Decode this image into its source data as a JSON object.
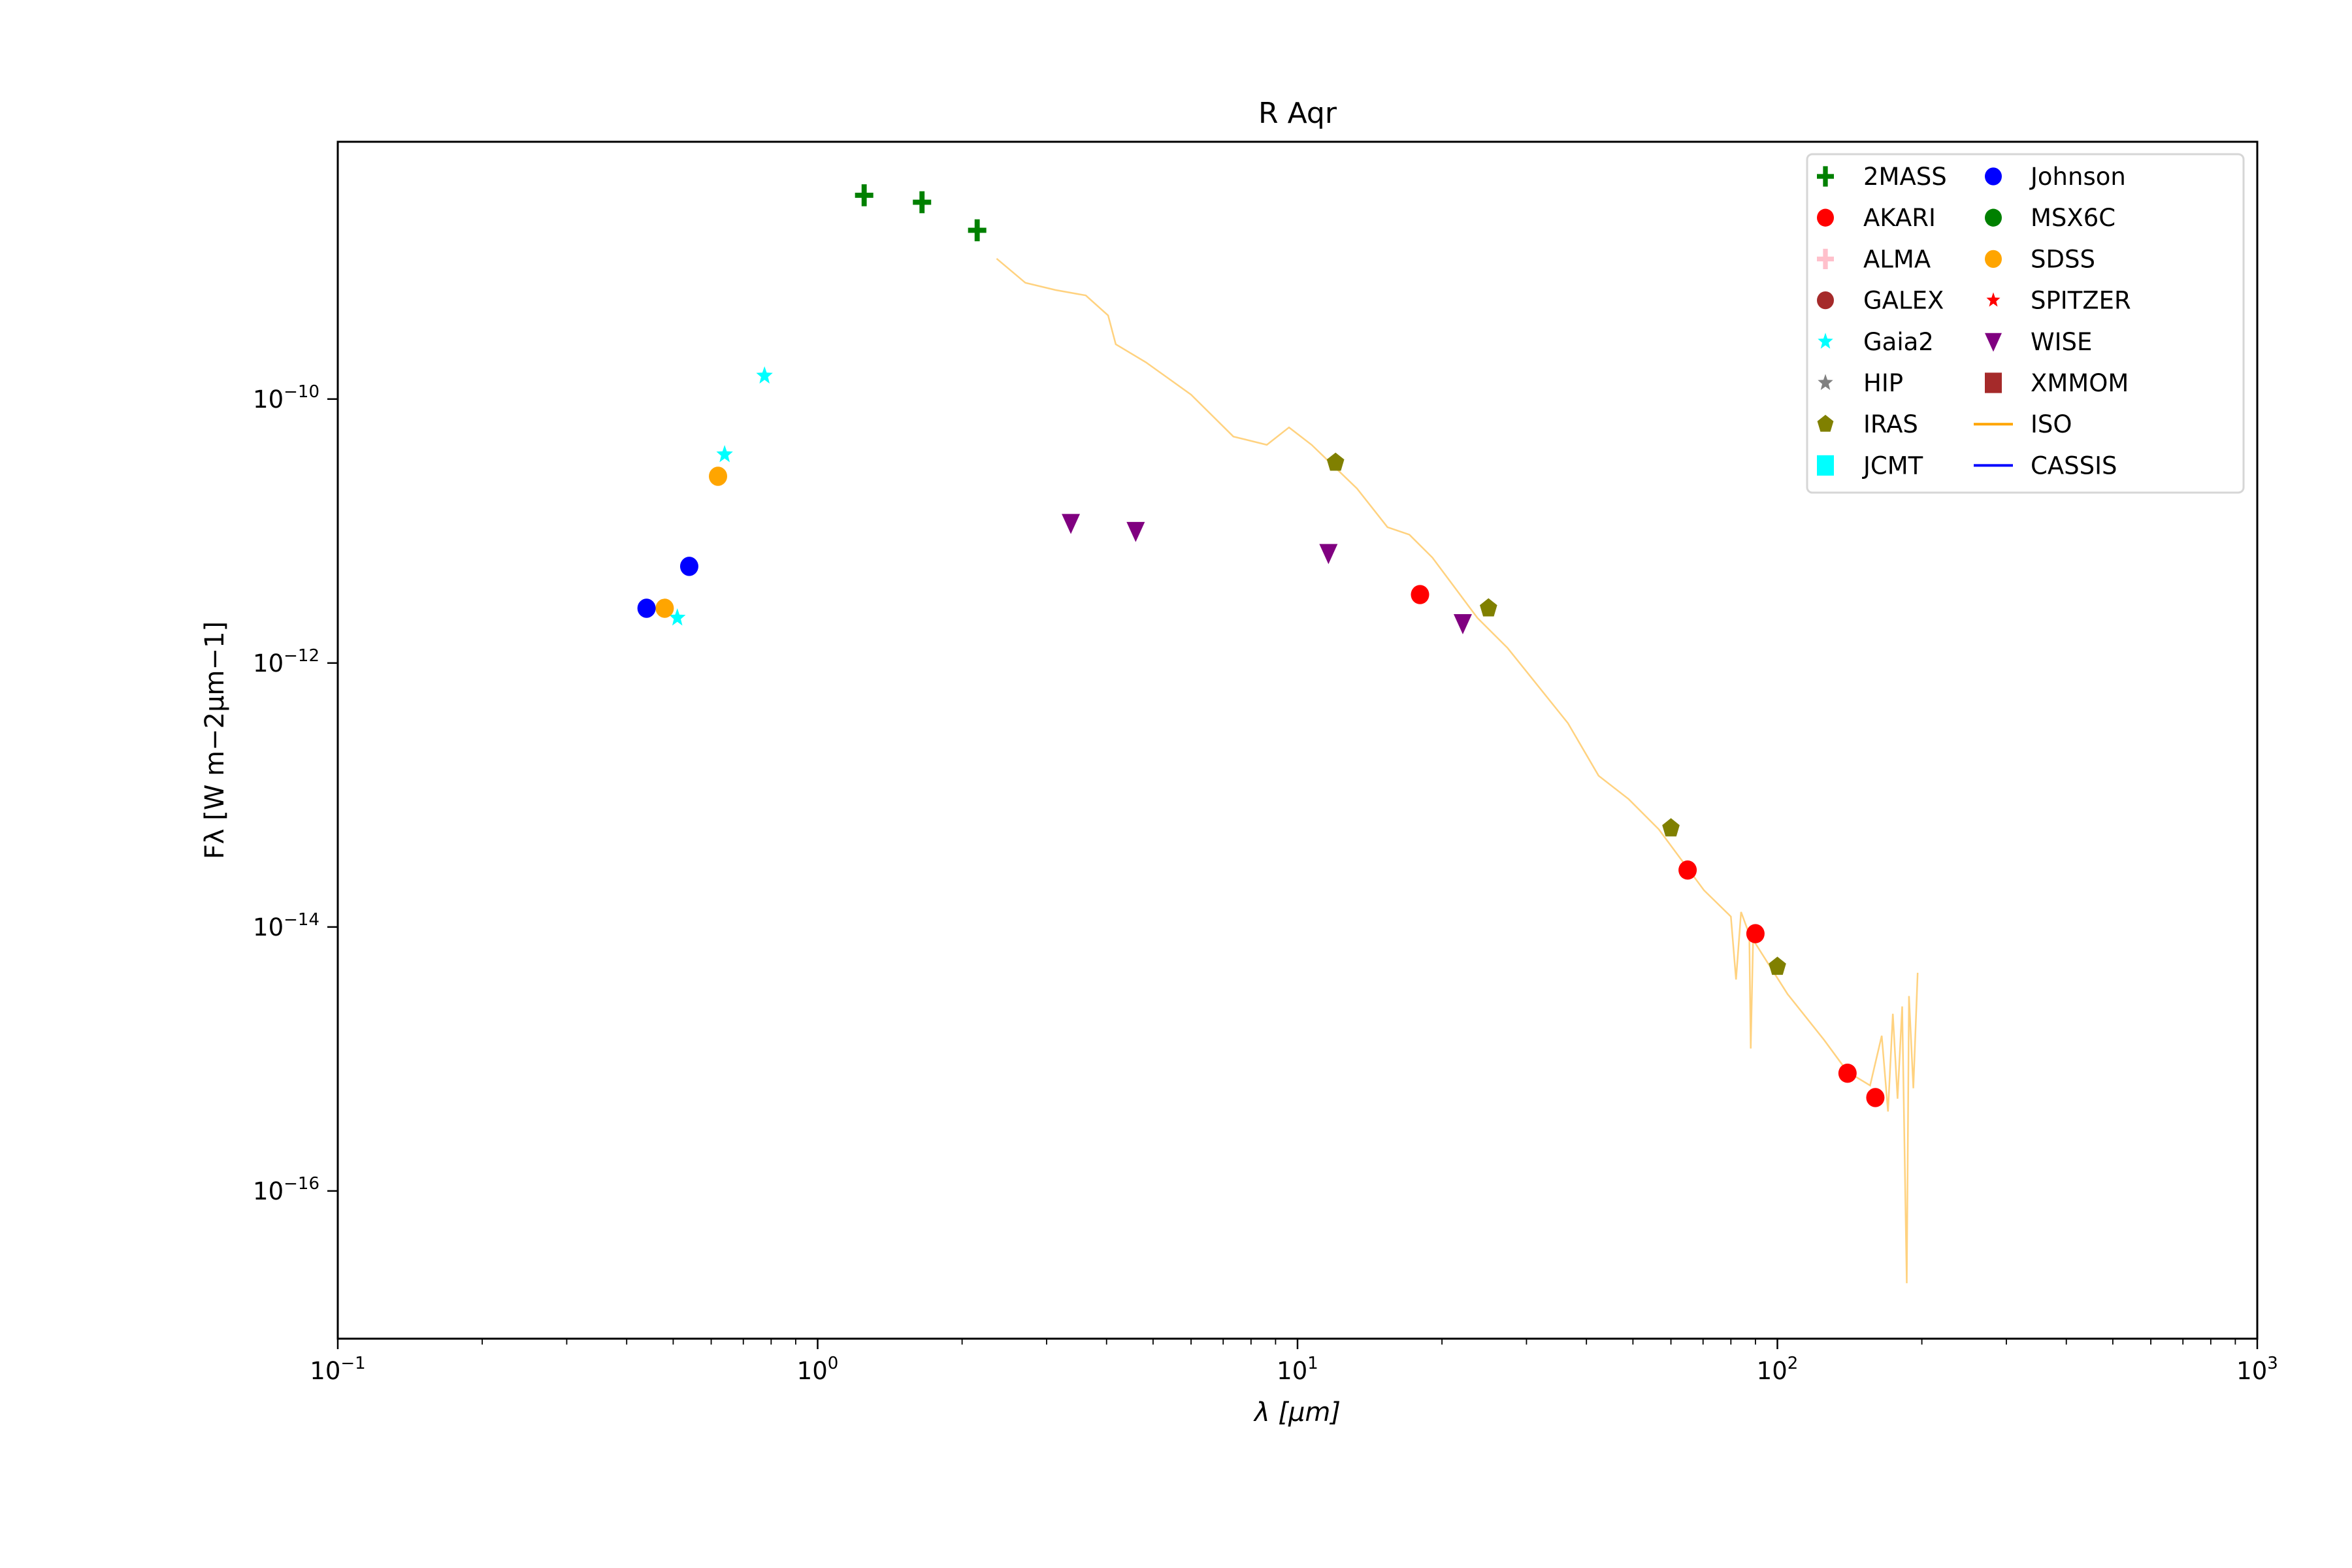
{
  "chart_data": {
    "type": "scatter",
    "title": "R Aqr",
    "xlabel": "λ [μm]",
    "ylabel": "Fλ [W m−2μm−1]",
    "xscale": "log",
    "yscale": "log",
    "xlim": [
      0.1,
      1000
    ],
    "ylim": [
      8.9e-09,
      7.6e-18
    ],
    "xticks": [
      {
        "base": "10",
        "exp": "−1",
        "value": 0.1
      },
      {
        "base": "10",
        "exp": "0",
        "value": 1
      },
      {
        "base": "10",
        "exp": "1",
        "value": 10
      },
      {
        "base": "10",
        "exp": "2",
        "value": 100
      },
      {
        "base": "10",
        "exp": "3",
        "value": 1000
      }
    ],
    "yticks": [
      {
        "base": "10",
        "exp": "−10",
        "value": 1e-10
      },
      {
        "base": "10",
        "exp": "−12",
        "value": 1e-12
      },
      {
        "base": "10",
        "exp": "−14",
        "value": 1e-14
      },
      {
        "base": "10",
        "exp": "−16",
        "value": 1e-16
      }
    ],
    "legend_position": "top-right",
    "legend": [
      {
        "name": "2MASS",
        "marker": "plus",
        "color": "#008000"
      },
      {
        "name": "AKARI",
        "marker": "circle",
        "color": "#ff0000"
      },
      {
        "name": "ALMA",
        "marker": "plus",
        "color": "#ffc0cb"
      },
      {
        "name": "GALEX",
        "marker": "circle",
        "color": "#a52a2a"
      },
      {
        "name": "Gaia2",
        "marker": "star",
        "color": "#00ffff"
      },
      {
        "name": "HIP",
        "marker": "star",
        "color": "#808080"
      },
      {
        "name": "IRAS",
        "marker": "pentagon",
        "color": "#808000"
      },
      {
        "name": "JCMT",
        "marker": "square",
        "color": "#00ffff"
      },
      {
        "name": "Johnson",
        "marker": "circle",
        "color": "#0000ff"
      },
      {
        "name": "MSX6C",
        "marker": "circle",
        "color": "#008000"
      },
      {
        "name": "SDSS",
        "marker": "circle",
        "color": "#ffa500"
      },
      {
        "name": "SPITZER",
        "marker": "smallstar",
        "color": "#ff0000"
      },
      {
        "name": "WISE",
        "marker": "triangle-down",
        "color": "#800080"
      },
      {
        "name": "XMMOM",
        "marker": "square",
        "color": "#a52a2a"
      },
      {
        "name": "ISO",
        "marker": "line",
        "color": "#ffa500"
      },
      {
        "name": "CASSIS",
        "marker": "line",
        "color": "#0000ff"
      }
    ],
    "series": [
      {
        "name": "2MASS",
        "points": [
          [
            1.25,
            3.5e-09
          ],
          [
            1.65,
            3.1e-09
          ],
          [
            2.15,
            1.9e-09
          ]
        ]
      },
      {
        "name": "Gaia2",
        "points": [
          [
            0.775,
            1.5e-10
          ],
          [
            0.64,
            3.8e-11
          ],
          [
            0.51,
            2.2e-12
          ]
        ]
      },
      {
        "name": "SDSS",
        "points": [
          [
            0.62,
            2.6e-11
          ],
          [
            0.48,
            2.6e-12
          ]
        ]
      },
      {
        "name": "Johnson",
        "points": [
          [
            0.44,
            2.6e-12
          ],
          [
            0.54,
            5.4e-12
          ]
        ]
      },
      {
        "name": "WISE",
        "points": [
          [
            3.37,
            1.15e-11
          ],
          [
            4.6,
            1e-11
          ],
          [
            11.6,
            6.8e-12
          ],
          [
            22.1,
            2e-12
          ]
        ]
      },
      {
        "name": "AKARI",
        "points": [
          [
            18,
            3.3e-12
          ],
          [
            65,
            2.7e-14
          ],
          [
            90,
            8.9e-15
          ],
          [
            140,
            7.8e-16
          ],
          [
            160,
            5.1e-16
          ]
        ]
      },
      {
        "name": "IRAS",
        "points": [
          [
            12,
            3.3e-11
          ],
          [
            25,
            2.6e-12
          ],
          [
            60,
            5.6e-14
          ],
          [
            100,
            5e-15
          ]
        ]
      },
      {
        "name": "ISO",
        "line": true,
        "points": [
          [
            2.36,
            1.16e-09
          ],
          [
            2.71,
            7.6e-10
          ],
          [
            3.13,
            6.7e-10
          ],
          [
            3.62,
            6.1e-10
          ],
          [
            4.03,
            4.3e-10
          ],
          [
            4.18,
            2.6e-10
          ],
          [
            4.83,
            1.9e-10
          ],
          [
            6.0,
            1.08e-10
          ],
          [
            7.35,
            5.2e-11
          ],
          [
            8.63,
            4.5e-11
          ],
          [
            9.6,
            6.1e-11
          ],
          [
            10.7,
            4.5e-11
          ],
          [
            13.3,
            2.1e-11
          ],
          [
            15.4,
            1.07e-11
          ],
          [
            17.1,
            9.4e-12
          ],
          [
            19.1,
            6.3e-12
          ],
          [
            23.7,
            2.2e-12
          ],
          [
            27.4,
            1.3e-12
          ],
          [
            36.6,
            3.5e-13
          ],
          [
            42.4,
            1.4e-13
          ],
          [
            49,
            9.3e-14
          ],
          [
            56.6,
            5.5e-14
          ],
          [
            70.3,
            1.9e-14
          ],
          [
            80,
            1.2e-14
          ],
          [
            82,
            4e-15
          ],
          [
            84,
            1.3e-14
          ],
          [
            87.4,
            8.8e-15
          ],
          [
            88,
            1.2e-15
          ],
          [
            89,
            8e-15
          ],
          [
            105,
            3.1e-15
          ],
          [
            125,
            1.4e-15
          ],
          [
            140,
            8e-16
          ],
          [
            156,
            6.3e-16
          ],
          [
            165,
            1.5e-15
          ],
          [
            170,
            4e-16
          ],
          [
            174,
            2.2e-15
          ],
          [
            178,
            5e-16
          ],
          [
            182,
            2.5e-15
          ],
          [
            186,
            2e-17
          ],
          [
            188,
            3e-15
          ],
          [
            192,
            6e-16
          ],
          [
            196,
            4.5e-15
          ]
        ]
      }
    ]
  }
}
